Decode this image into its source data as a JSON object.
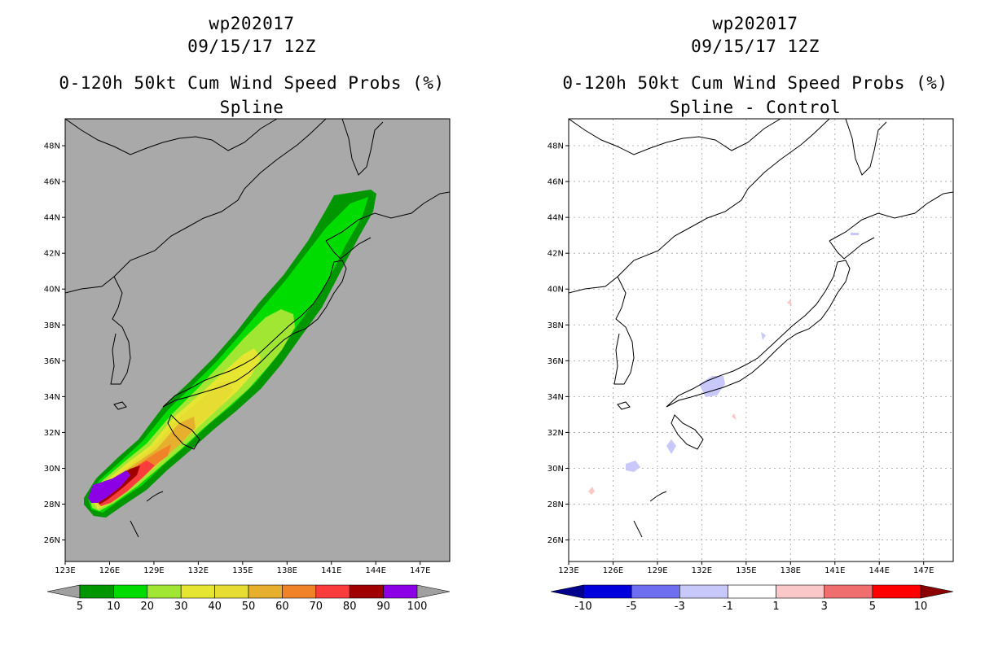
{
  "left": {
    "title_line1": "wp202017",
    "title_line2": "09/15/17 12Z",
    "title_line3": "0-120h 50kt Cum Wind Speed Probs (%)",
    "title_line4": "Spline",
    "colorbar": {
      "labels": [
        "5",
        "10",
        "20",
        "30",
        "40",
        "50",
        "60",
        "70",
        "80",
        "90",
        "100"
      ],
      "colors": [
        "#009600",
        "#00dc00",
        "#a0e632",
        "#e6e632",
        "#e6dc32",
        "#e6af2d",
        "#f08228",
        "#fa3c3c",
        "#a00000",
        "#8c00e6"
      ],
      "under_color": "#a0a0a0",
      "over_color": "#a0a0a0"
    }
  },
  "right": {
    "title_line1": "wp202017",
    "title_line2": "09/15/17 12Z",
    "title_line3": "0-120h 50kt Cum Wind Speed Probs (%)",
    "title_line4": "Spline - Control",
    "colorbar": {
      "labels": [
        "-10",
        "-5",
        "-3",
        "-1",
        "1",
        "3",
        "5",
        "10"
      ],
      "colors": [
        "#0000dc",
        "#6e6ef0",
        "#c8c8fa",
        "#ffffff",
        "#fac8c8",
        "#f06e6e",
        "#ff0000"
      ],
      "under_color": "#00008c",
      "over_color": "#8c0000"
    }
  },
  "map": {
    "lat_labels": [
      "26N",
      "28N",
      "30N",
      "32N",
      "34N",
      "36N",
      "38N",
      "40N",
      "42N",
      "44N",
      "46N",
      "48N"
    ],
    "lon_labels": [
      "123E",
      "126E",
      "129E",
      "132E",
      "135E",
      "138E",
      "141E",
      "144E",
      "147E"
    ],
    "background_color": "#a9a9a9"
  }
}
